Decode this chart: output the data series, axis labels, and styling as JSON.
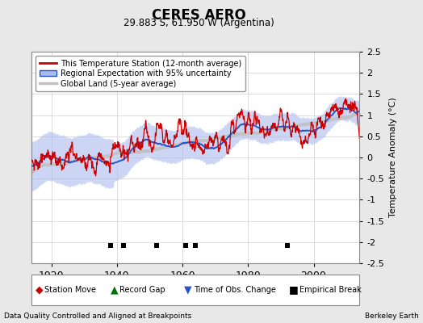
{
  "title": "CERES AERO",
  "subtitle": "29.883 S, 61.950 W (Argentina)",
  "ylabel": "Temperature Anomaly (°C)",
  "xlabel_bottom_left": "Data Quality Controlled and Aligned at Breakpoints",
  "xlabel_bottom_right": "Berkeley Earth",
  "year_start": 1914,
  "year_end": 2014,
  "ylim": [
    -2.5,
    2.5
  ],
  "yticks": [
    -2.5,
    -2,
    -1.5,
    -1,
    -0.5,
    0,
    0.5,
    1,
    1.5,
    2,
    2.5
  ],
  "xticks": [
    1920,
    1940,
    1960,
    1980,
    2000
  ],
  "empirical_breaks": [
    1938,
    1942,
    1952,
    1961,
    1964,
    1992
  ],
  "background_color": "#e8e8e8",
  "plot_bg_color": "#ffffff",
  "red_line_color": "#cc0000",
  "blue_line_color": "#2255cc",
  "blue_fill_color": "#aabbee",
  "gray_line_color": "#c0c0c0",
  "seed": 42,
  "legend_entries": [
    "This Temperature Station (12-month average)",
    "Regional Expectation with 95% uncertainty",
    "Global Land (5-year average)"
  ],
  "figwidth": 5.24,
  "figheight": 4.0,
  "dpi": 100
}
